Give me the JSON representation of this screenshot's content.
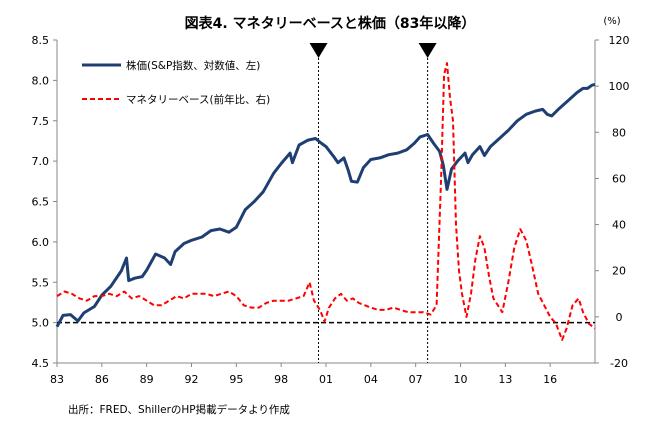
{
  "chart_data": {
    "type": "line",
    "title": "図表4. マネタリーベースと株価（83年以降）",
    "left_axis": {
      "ylim": [
        4.5,
        8.5
      ],
      "ticks": [
        4.5,
        5.0,
        5.5,
        6.0,
        6.5,
        7.0,
        7.5,
        8.0,
        8.5
      ]
    },
    "right_axis": {
      "unit": "(%)",
      "ylim": [
        -20,
        120
      ],
      "ticks": [
        -20,
        0,
        20,
        40,
        60,
        80,
        100,
        120
      ]
    },
    "x_axis": {
      "range": [
        1983,
        2019
      ],
      "ticks": [
        {
          "year": 1983,
          "label": "83"
        },
        {
          "year": 1986,
          "label": "86"
        },
        {
          "year": 1989,
          "label": "89"
        },
        {
          "year": 1992,
          "label": "92"
        },
        {
          "year": 1995,
          "label": "95"
        },
        {
          "year": 1998,
          "label": "98"
        },
        {
          "year": 2001,
          "label": "01"
        },
        {
          "year": 2004,
          "label": "04"
        },
        {
          "year": 2007,
          "label": "07"
        },
        {
          "year": 2010,
          "label": "10"
        },
        {
          "year": 2013,
          "label": "13"
        },
        {
          "year": 2016,
          "label": "16"
        }
      ]
    },
    "legend_placement": "top-left",
    "series": [
      {
        "name": "株価(S&P指数、対数値、左)",
        "axis": "left",
        "color": "#1f3f73",
        "style": "solid",
        "points": [
          [
            1983.0,
            4.95
          ],
          [
            1983.4,
            5.09
          ],
          [
            1983.9,
            5.1
          ],
          [
            1984.4,
            5.02
          ],
          [
            1984.8,
            5.12
          ],
          [
            1985.5,
            5.2
          ],
          [
            1986.0,
            5.34
          ],
          [
            1986.6,
            5.45
          ],
          [
            1987.3,
            5.64
          ],
          [
            1987.65,
            5.8
          ],
          [
            1987.8,
            5.52
          ],
          [
            1988.2,
            5.55
          ],
          [
            1988.7,
            5.57
          ],
          [
            1989.0,
            5.65
          ],
          [
            1989.6,
            5.85
          ],
          [
            1990.2,
            5.8
          ],
          [
            1990.6,
            5.72
          ],
          [
            1990.9,
            5.88
          ],
          [
            1991.5,
            5.98
          ],
          [
            1992.0,
            6.02
          ],
          [
            1992.7,
            6.06
          ],
          [
            1993.3,
            6.14
          ],
          [
            1993.9,
            6.16
          ],
          [
            1994.5,
            6.12
          ],
          [
            1995.0,
            6.18
          ],
          [
            1995.6,
            6.4
          ],
          [
            1996.2,
            6.5
          ],
          [
            1996.8,
            6.62
          ],
          [
            1997.5,
            6.85
          ],
          [
            1998.0,
            6.97
          ],
          [
            1998.6,
            7.1
          ],
          [
            1998.75,
            6.98
          ],
          [
            1999.2,
            7.2
          ],
          [
            1999.8,
            7.26
          ],
          [
            2000.3,
            7.28
          ],
          [
            2000.7,
            7.22
          ],
          [
            2001.0,
            7.18
          ],
          [
            2001.5,
            7.06
          ],
          [
            2001.8,
            6.98
          ],
          [
            2002.2,
            7.04
          ],
          [
            2002.5,
            6.88
          ],
          [
            2002.7,
            6.75
          ],
          [
            2003.1,
            6.74
          ],
          [
            2003.5,
            6.92
          ],
          [
            2004.0,
            7.02
          ],
          [
            2004.6,
            7.04
          ],
          [
            2005.2,
            7.08
          ],
          [
            2005.8,
            7.1
          ],
          [
            2006.4,
            7.14
          ],
          [
            2006.9,
            7.22
          ],
          [
            2007.3,
            7.3
          ],
          [
            2007.8,
            7.33
          ],
          [
            2008.2,
            7.22
          ],
          [
            2008.6,
            7.12
          ],
          [
            2008.85,
            6.95
          ],
          [
            2009.1,
            6.65
          ],
          [
            2009.4,
            6.9
          ],
          [
            2009.8,
            7.0
          ],
          [
            2010.3,
            7.1
          ],
          [
            2010.5,
            6.98
          ],
          [
            2010.8,
            7.08
          ],
          [
            2011.3,
            7.18
          ],
          [
            2011.6,
            7.07
          ],
          [
            2012.0,
            7.18
          ],
          [
            2012.6,
            7.28
          ],
          [
            2013.2,
            7.38
          ],
          [
            2013.8,
            7.5
          ],
          [
            2014.4,
            7.58
          ],
          [
            2015.0,
            7.62
          ],
          [
            2015.5,
            7.64
          ],
          [
            2015.8,
            7.58
          ],
          [
            2016.1,
            7.56
          ],
          [
            2016.6,
            7.65
          ],
          [
            2017.2,
            7.75
          ],
          [
            2017.8,
            7.85
          ],
          [
            2018.2,
            7.9
          ],
          [
            2018.5,
            7.9
          ],
          [
            2018.8,
            7.94
          ],
          [
            2019.0,
            7.95
          ]
        ]
      },
      {
        "name": "マネタリーベース(前年比、右)",
        "axis": "right",
        "color": "#ff0000",
        "style": "dashed",
        "points": [
          [
            1983.0,
            9
          ],
          [
            1983.5,
            11
          ],
          [
            1984.0,
            10
          ],
          [
            1984.5,
            8
          ],
          [
            1985.0,
            7
          ],
          [
            1985.5,
            9
          ],
          [
            1986.0,
            9
          ],
          [
            1986.5,
            10
          ],
          [
            1987.0,
            9
          ],
          [
            1987.5,
            11
          ],
          [
            1988.0,
            8
          ],
          [
            1988.5,
            9
          ],
          [
            1989.0,
            7
          ],
          [
            1989.5,
            5
          ],
          [
            1990.0,
            5
          ],
          [
            1990.5,
            7
          ],
          [
            1991.0,
            9
          ],
          [
            1991.5,
            8
          ],
          [
            1992.0,
            10
          ],
          [
            1992.5,
            10
          ],
          [
            1993.0,
            10
          ],
          [
            1993.5,
            9
          ],
          [
            1994.0,
            10
          ],
          [
            1994.5,
            11
          ],
          [
            1995.0,
            9
          ],
          [
            1995.5,
            5
          ],
          [
            1996.0,
            4
          ],
          [
            1996.5,
            4
          ],
          [
            1997.0,
            6
          ],
          [
            1997.5,
            7
          ],
          [
            1998.0,
            7
          ],
          [
            1998.5,
            7
          ],
          [
            1999.0,
            8
          ],
          [
            1999.5,
            9
          ],
          [
            1999.9,
            15
          ],
          [
            2000.2,
            7
          ],
          [
            2000.6,
            3
          ],
          [
            2000.9,
            -2
          ],
          [
            2001.2,
            4
          ],
          [
            2001.6,
            8
          ],
          [
            2002.0,
            10
          ],
          [
            2002.4,
            7
          ],
          [
            2002.8,
            8
          ],
          [
            2003.2,
            6
          ],
          [
            2003.6,
            5
          ],
          [
            2004.0,
            4
          ],
          [
            2004.5,
            3
          ],
          [
            2005.0,
            3
          ],
          [
            2005.5,
            4
          ],
          [
            2006.0,
            3
          ],
          [
            2006.5,
            2
          ],
          [
            2007.0,
            2
          ],
          [
            2007.5,
            2
          ],
          [
            2008.0,
            1
          ],
          [
            2008.4,
            5
          ],
          [
            2008.7,
            60
          ],
          [
            2008.9,
            105
          ],
          [
            2009.1,
            110
          ],
          [
            2009.3,
            95
          ],
          [
            2009.5,
            85
          ],
          [
            2009.7,
            40
          ],
          [
            2009.9,
            20
          ],
          [
            2010.1,
            10
          ],
          [
            2010.4,
            0
          ],
          [
            2010.7,
            10
          ],
          [
            2011.0,
            25
          ],
          [
            2011.3,
            35
          ],
          [
            2011.6,
            30
          ],
          [
            2011.9,
            18
          ],
          [
            2012.2,
            8
          ],
          [
            2012.5,
            5
          ],
          [
            2012.8,
            2
          ],
          [
            2013.2,
            15
          ],
          [
            2013.6,
            30
          ],
          [
            2014.0,
            38
          ],
          [
            2014.4,
            33
          ],
          [
            2014.8,
            22
          ],
          [
            2015.2,
            10
          ],
          [
            2015.6,
            5
          ],
          [
            2016.0,
            0
          ],
          [
            2016.4,
            -3
          ],
          [
            2016.8,
            -10
          ],
          [
            2017.1,
            -5
          ],
          [
            2017.5,
            5
          ],
          [
            2017.9,
            8
          ],
          [
            2018.2,
            2
          ],
          [
            2018.6,
            -3
          ],
          [
            2019.0,
            -5
          ]
        ]
      }
    ],
    "event_markers": [
      2000.5,
      2007.8
    ],
    "zero_reference_line": 5.0
  },
  "source_note": "出所：FRED、ShillerのHP掲載データより作成"
}
